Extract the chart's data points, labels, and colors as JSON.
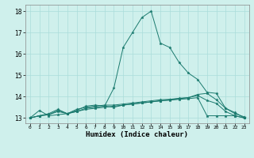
{
  "xlabel": "Humidex (Indice chaleur)",
  "ylabel": "",
  "bg_color": "#cff0ec",
  "grid_color": "#aaddda",
  "line_color": "#1a7a6e",
  "xlim": [
    -0.5,
    23.5
  ],
  "ylim": [
    12.75,
    18.3
  ],
  "yticks": [
    13,
    14,
    15,
    16,
    17,
    18
  ],
  "xticks": [
    0,
    1,
    2,
    3,
    4,
    5,
    6,
    7,
    8,
    9,
    10,
    11,
    12,
    13,
    14,
    15,
    16,
    17,
    18,
    19,
    20,
    21,
    22,
    23
  ],
  "lines": [
    [
      13.0,
      13.35,
      13.1,
      13.15,
      13.2,
      13.35,
      13.55,
      13.6,
      13.55,
      14.4,
      16.3,
      17.0,
      17.7,
      18.0,
      16.5,
      16.3,
      15.6,
      15.1,
      14.8,
      14.2,
      14.15,
      13.45,
      13.25,
      13.0
    ],
    [
      13.0,
      13.1,
      13.2,
      13.4,
      13.2,
      13.3,
      13.45,
      13.5,
      13.55,
      13.5,
      13.6,
      13.65,
      13.7,
      13.75,
      13.8,
      13.85,
      13.9,
      13.95,
      14.1,
      14.15,
      13.85,
      13.45,
      13.2,
      13.05
    ],
    [
      13.0,
      13.1,
      13.15,
      13.35,
      13.2,
      13.3,
      13.4,
      13.45,
      13.5,
      13.55,
      13.6,
      13.65,
      13.7,
      13.75,
      13.8,
      13.83,
      13.87,
      13.9,
      13.95,
      13.1,
      13.1,
      13.1,
      13.1,
      13.0
    ],
    [
      13.0,
      13.1,
      13.15,
      13.3,
      13.2,
      13.4,
      13.5,
      13.55,
      13.6,
      13.6,
      13.65,
      13.7,
      13.75,
      13.8,
      13.85,
      13.87,
      13.92,
      13.95,
      14.05,
      13.82,
      13.68,
      13.3,
      13.1,
      13.0
    ]
  ]
}
